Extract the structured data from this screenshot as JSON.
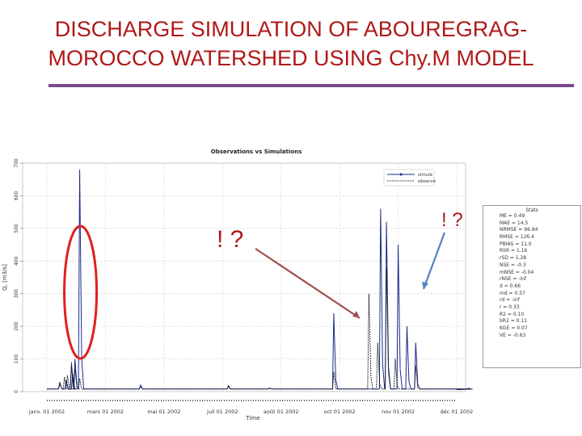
{
  "slide": {
    "title_line1": "DISCHARGE SIMULATION OF ABOUREGRAG-",
    "title_line2": "MOROCCO WATERSHED USING Chy.M MODEL",
    "annotations": [
      "! ?",
      "! ?"
    ]
  },
  "colors": {
    "title": "#b01818",
    "rule": "#7a4a8c",
    "sim": "#1a2a8a",
    "obs": "#111111",
    "highlight_ellipse": "#e02020",
    "arrow_left": "#a05050",
    "arrow_right": "#5080c0"
  },
  "chart_data": {
    "type": "line",
    "title": "Observations vs Simulations",
    "xlabel": "Time",
    "ylabel": "Q, [m3/s]",
    "ylim": [
      0,
      700
    ],
    "yticks": [
      0,
      100,
      200,
      300,
      400,
      500,
      600,
      700
    ],
    "xticks": [
      "janv. 01 2002",
      "mars 01 2002",
      "mai 01 2002",
      "juil 01 2002",
      "août 01 2002",
      "oct 01 2002",
      "nov 01 2002",
      "déc 01 2002"
    ],
    "legend": {
      "position": "top-right",
      "entries": [
        "simulé",
        "observé"
      ]
    },
    "series": [
      {
        "name": "simulé",
        "peaks": [
          [
            0.22,
            25
          ],
          [
            0.33,
            35
          ],
          [
            0.42,
            80
          ],
          [
            0.44,
            55
          ],
          [
            0.48,
            100
          ],
          [
            0.56,
            680
          ],
          [
            1.6,
            20
          ],
          [
            3.1,
            15
          ],
          [
            3.8,
            10
          ],
          [
            4.9,
            240
          ],
          [
            5.7,
            560
          ],
          [
            5.8,
            520
          ],
          [
            6.0,
            450
          ],
          [
            6.15,
            200
          ],
          [
            6.3,
            150
          ],
          [
            7.2,
            10
          ]
        ]
      },
      {
        "name": "observé",
        "peaks": [
          [
            0.22,
            30
          ],
          [
            0.3,
            45
          ],
          [
            0.35,
            50
          ],
          [
            0.42,
            90
          ],
          [
            0.48,
            70
          ],
          [
            0.56,
            40
          ],
          [
            1.6,
            15
          ],
          [
            3.1,
            20
          ],
          [
            3.8,
            12
          ],
          [
            4.9,
            60
          ],
          [
            5.5,
            300
          ],
          [
            5.65,
            150
          ],
          [
            5.8,
            380
          ],
          [
            5.95,
            100
          ],
          [
            6.3,
            80
          ],
          [
            7.2,
            10
          ]
        ]
      }
    ],
    "stats_title": "Stats",
    "stats": [
      "ME = 0.49",
      "MAE = 14.5",
      "NRMSE = 96.84",
      "RMSE = 126.4",
      "PBIAS = 11.0",
      "RSR = 1.16",
      "rSD = 1.28",
      "NSE = -0.3",
      "mNSE = -0.04",
      "rNSE = -inf",
      "d = 0.66",
      "md = 0.57",
      "rd = -inf",
      "r = 0.33",
      "R2 = 0.10",
      "bR2 = 0.11",
      "KGE = 0.07",
      "VE = -0.63"
    ]
  }
}
